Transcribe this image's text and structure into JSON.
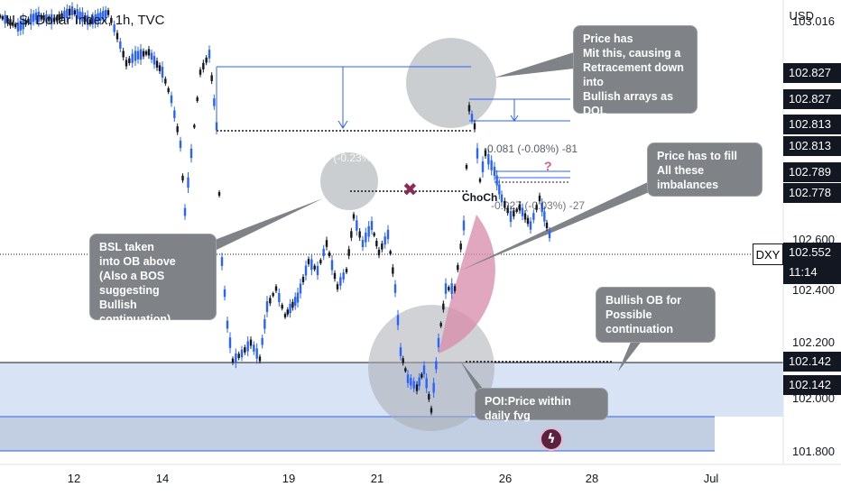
{
  "symbol": {
    "title": "U.S. Dollar Index, 1h, TVC",
    "ticker": "DXY",
    "last_price": "102.552",
    "countdown": "11:14",
    "currency": "USD"
  },
  "price_axis": {
    "ticks": [
      "103.016",
      "102.600",
      "102.400",
      "102.200",
      "102.000",
      "101.800"
    ],
    "ticks_partial_top": "103.016",
    "labels": [
      {
        "text": "102.827",
        "bg": "#131722"
      },
      {
        "text": "102.827",
        "bg": "#131722"
      },
      {
        "text": "102.813",
        "bg": "#131722"
      },
      {
        "text": "102.813",
        "bg": "#131722"
      },
      {
        "text": "102.789",
        "bg": "#131722"
      },
      {
        "text": "102.778",
        "bg": "#131722"
      },
      {
        "text": "102.142",
        "bg": "#131722"
      },
      {
        "text": "102.142",
        "bg": "#131722"
      }
    ]
  },
  "time_axis": {
    "labels": [
      "12",
      "14",
      "19",
      "21",
      "26",
      "28",
      "Jul"
    ]
  },
  "callouts": {
    "mit": "Price has\nMit this, causing a\nRetracement down into\nBullish arrays as DOL",
    "fill": "Price has to fill\nAll these imbalances",
    "bsl": "BSL taken\ninto OB above\n(Also a BOS suggesting\nBullish continuation)",
    "ob": "Bullish OB for\nPossible continuation",
    "poi": "POI:Price within daily fvg"
  },
  "annotations": {
    "choch": "ChoCh",
    "measure_left": "-0.233 (-0.23%) -233",
    "measure_right": "-0.081 (-0.08%) -81",
    "measure_small": "-0.027 (-0.03%) -27",
    "question": "?",
    "cross": "✖"
  },
  "colors": {
    "zone_fill": "#d8e3f5",
    "zone_dark": "#c2cee2",
    "line_blue": "#2962ff",
    "callout_bg": "#7f8388",
    "arc_pink": "#d78aa8",
    "candle": "#131722",
    "candle_up": "#2962ff"
  },
  "icons": [
    "flash-icon"
  ]
}
